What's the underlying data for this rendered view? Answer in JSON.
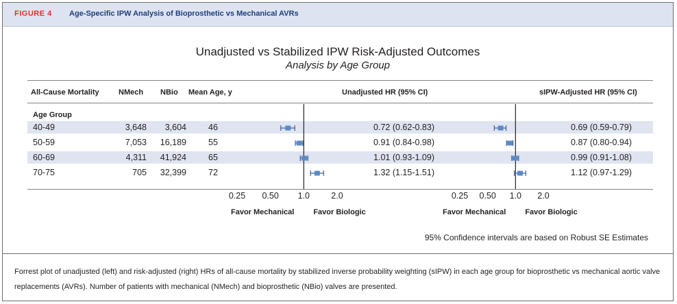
{
  "figure": {
    "label": "FIGURE 4",
    "title": "Age-Specific IPW Analysis of Bioprosthetic vs Mechanical AVRs"
  },
  "chart_title": "Unadjusted vs Stabilized IPW Risk-Adjusted Outcomes",
  "chart_subtitle": "Analysis by Age Group",
  "table": {
    "headers": {
      "outcome": "All-Cause Mortality",
      "nmech": "NMech",
      "nbio": "NBio",
      "mean_age": "Mean Age, y",
      "unadjusted": "Unadjusted HR (95% CI)",
      "adjusted": "sIPW-Adjusted HR (95% CI)"
    },
    "group_label": "Age Group",
    "rows": [
      {
        "age": "40-49",
        "nmech": "3,648",
        "nbio": "3,604",
        "mean_age": "46",
        "unadj_text": "0.72 (0.62-0.83)",
        "adj_text": "0.69 (0.59-0.79)"
      },
      {
        "age": "50-59",
        "nmech": "7,053",
        "nbio": "16,189",
        "mean_age": "55",
        "unadj_text": "0.91 (0.84-0.98)",
        "adj_text": "0.87 (0.80-0.94)"
      },
      {
        "age": "60-69",
        "nmech": "4,311",
        "nbio": "41,924",
        "mean_age": "65",
        "unadj_text": "1.01 (0.93-1.09)",
        "adj_text": "0.99 (0.91-1.08)"
      },
      {
        "age": "70-75",
        "nmech": "705",
        "nbio": "32,399",
        "mean_age": "72",
        "unadj_text": "1.32 (1.15-1.51)",
        "adj_text": "1.12 (0.97-1.29)"
      }
    ]
  },
  "chart_data": [
    {
      "type": "forest",
      "panel": "unadjusted",
      "scale": "log",
      "xlim": [
        0.25,
        2.0
      ],
      "ticks": [
        "0.25",
        "0.50",
        "1.0",
        "2.0"
      ],
      "tick_values": [
        0.25,
        0.5,
        1.0,
        2.0
      ],
      "reference": 1.0,
      "favor_left": "Favor Mechanical",
      "favor_right": "Favor Biologic",
      "categories": [
        "40-49",
        "50-59",
        "60-69",
        "70-75"
      ],
      "hr": [
        0.72,
        0.91,
        1.01,
        1.32
      ],
      "lower": [
        0.62,
        0.84,
        0.93,
        1.15
      ],
      "upper": [
        0.83,
        0.98,
        1.09,
        1.51
      ]
    },
    {
      "type": "forest",
      "panel": "sIPW-adjusted",
      "scale": "log",
      "xlim": [
        0.25,
        2.0
      ],
      "ticks": [
        "0.25",
        "0.50",
        "1.0",
        "2.0"
      ],
      "tick_values": [
        0.25,
        0.5,
        1.0,
        2.0
      ],
      "reference": 1.0,
      "favor_left": "Favor Mechanical",
      "favor_right": "Favor Biologic",
      "categories": [
        "40-49",
        "50-59",
        "60-69",
        "70-75"
      ],
      "hr": [
        0.69,
        0.87,
        0.99,
        1.12
      ],
      "lower": [
        0.59,
        0.8,
        0.91,
        0.97
      ],
      "upper": [
        0.79,
        0.94,
        1.08,
        1.29
      ]
    }
  ],
  "footnote": "95% Confidence intervals are based on Robust SE Estimates",
  "caption": "Forrest plot of unadjusted (left) and risk-adjusted (right) HRs of all-cause mortality by stabilized inverse probability weighting (sIPW) in each age group for bioprosthetic vs mechanical aortic valve replacements (AVRs). Number of patients with mechanical (NMech) and bioprosthetic (NBio) valves are presented.",
  "colors": {
    "marker": "#5b8ac6",
    "whisker": "#3b5f97",
    "band": "#dfe4f0",
    "header_band": "#dde3f1",
    "figure_label": "#e0322f",
    "figure_title": "#1f3d7a"
  }
}
